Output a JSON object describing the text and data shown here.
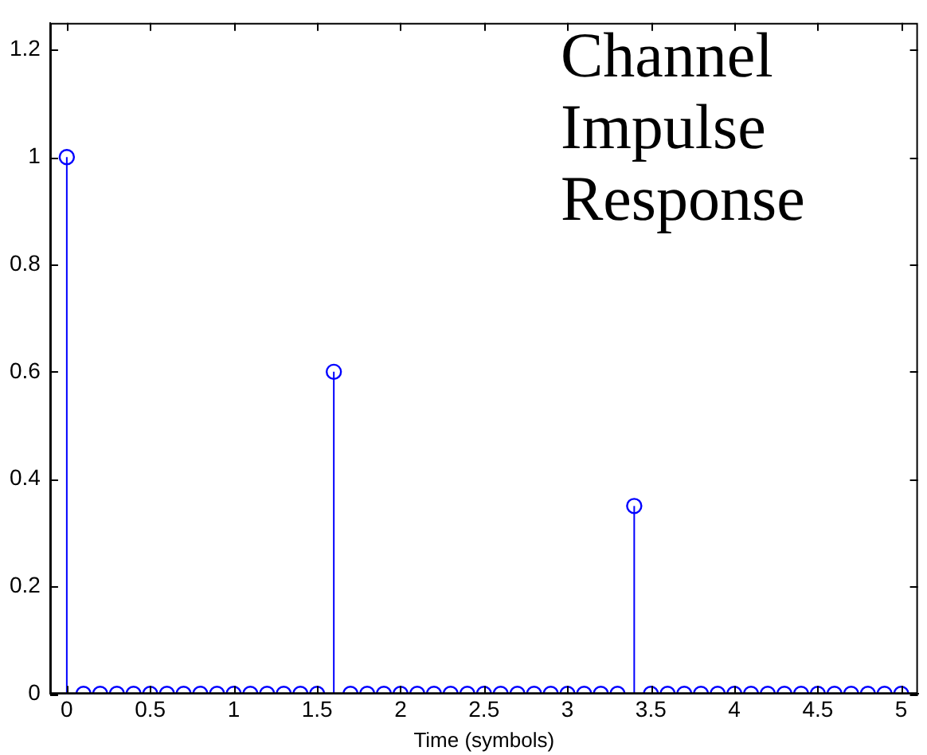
{
  "chart_data": {
    "type": "lollipop",
    "xlabel": "Time (symbols)",
    "annotations": [
      "Channel Impulse Response"
    ],
    "x": [
      0,
      0.1,
      0.2,
      0.3,
      0.4,
      0.5,
      0.6,
      0.7,
      0.8,
      0.9,
      1,
      1.1,
      1.2,
      1.3,
      1.4,
      1.5,
      1.6,
      1.7,
      1.8,
      1.9,
      2,
      2.1,
      2.2,
      2.3,
      2.4,
      2.5,
      2.6,
      2.7,
      2.8,
      2.9,
      3,
      3.1,
      3.2,
      3.3,
      3.4,
      3.5,
      3.6,
      3.7,
      3.8,
      3.9,
      4,
      4.1,
      4.2,
      4.3,
      4.4,
      4.5,
      4.6,
      4.7,
      4.8,
      4.9,
      5
    ],
    "values": [
      1,
      0,
      0,
      0,
      0,
      0,
      0,
      0,
      0,
      0,
      0,
      0,
      0,
      0,
      0,
      0,
      0.6,
      0,
      0,
      0,
      0,
      0,
      0,
      0,
      0,
      0,
      0,
      0,
      0,
      0,
      0,
      0,
      0,
      0,
      0.35,
      0,
      0,
      0,
      0,
      0,
      0,
      0,
      0,
      0,
      0,
      0,
      0,
      0,
      0,
      0,
      0
    ],
    "color": "#0000ff",
    "marker": "circle",
    "xlim": [
      -0.1,
      5.1
    ],
    "xticks": [
      0,
      0.5,
      1,
      1.5,
      2,
      2.5,
      3,
      3.5,
      4,
      4.5,
      5
    ],
    "ylim": [
      0,
      1.25
    ],
    "yticks": [
      0,
      0.2,
      0.4,
      0.6,
      0.8,
      1,
      1.2
    ],
    "grid": false,
    "legend": false
  }
}
